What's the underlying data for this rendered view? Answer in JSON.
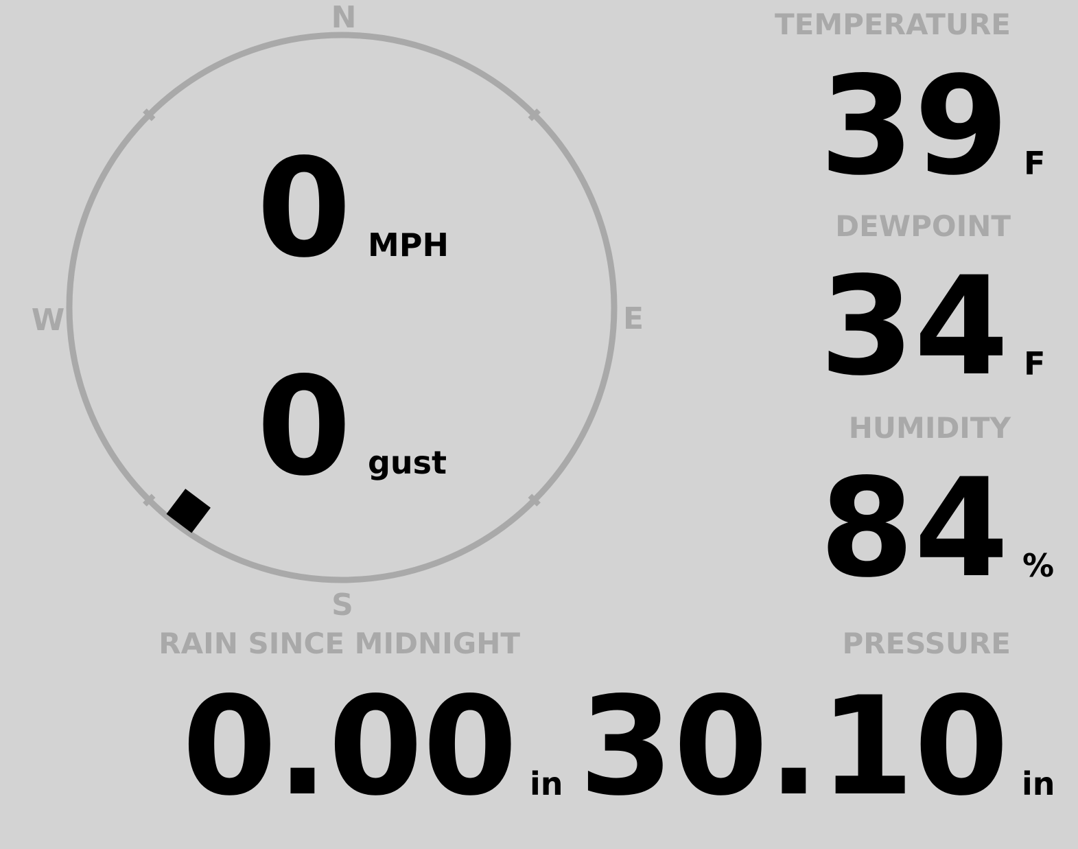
{
  "colors": {
    "background": "#d3d3d3",
    "muted": "#a9a9a9",
    "value": "#000000"
  },
  "compass": {
    "north": "N",
    "south": "S",
    "east": "E",
    "west": "W",
    "wind_direction_deg": 217,
    "marker_icon": "wind-direction-marker"
  },
  "wind": {
    "speed": "0",
    "speed_unit": "MPH",
    "gust": "0",
    "gust_unit": "gust"
  },
  "temperature": {
    "label": "TEMPERATURE",
    "value": "39",
    "unit": "F"
  },
  "dewpoint": {
    "label": "DEWPOINT",
    "value": "34",
    "unit": "F"
  },
  "humidity": {
    "label": "HUMIDITY",
    "value": "84",
    "unit": "%"
  },
  "rain": {
    "label": "RAIN SINCE MIDNIGHT",
    "value": "0.00",
    "unit": "in"
  },
  "pressure": {
    "label": "PRESSURE",
    "value": "30.10",
    "unit": "in"
  }
}
